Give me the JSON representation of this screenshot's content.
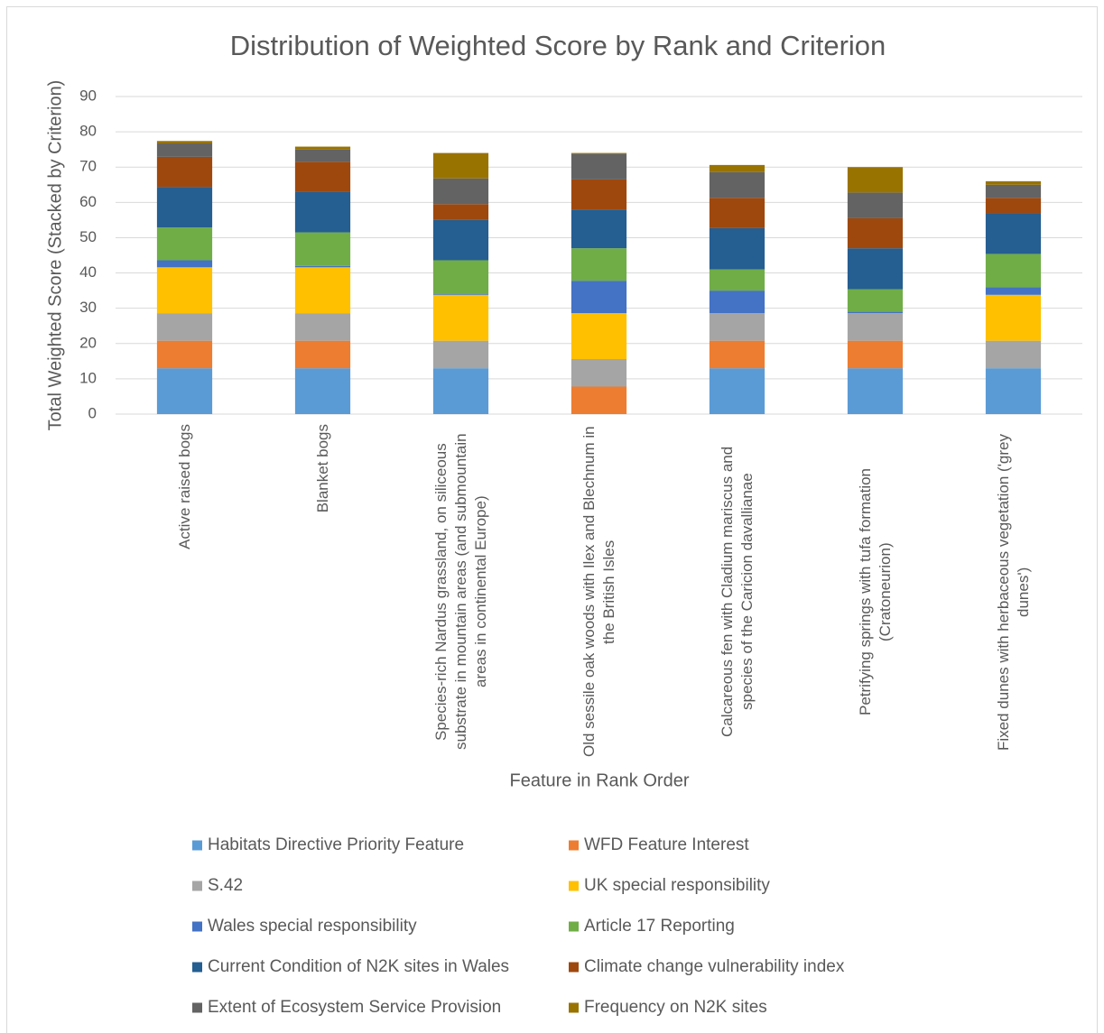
{
  "chart_data": {
    "type": "stacked_bar",
    "title": "Distribution of Weighted Score by Rank and Criterion",
    "x_label": "Feature in Rank Order",
    "y_label": "Total Weighted Score (Stacked by Criterion)",
    "categories": [
      "Active raised bogs",
      "Blanket bogs",
      "Species-rich Nardus grassland, on siliceous substrate in mountain areas (and submountain areas in continental Europe)",
      "Old sessile oak woods with Ilex and Blechnum in the British Isles",
      "Calcareous fen with Cladium mariscus and species of the Caricion davallianae",
      "Petrifying springs with tufa formation (Cratoneurion)",
      "Fixed dunes with herbaceous vegetation ('grey dunes')"
    ],
    "series": [
      {
        "name": "Habitats Directive Priority Feature",
        "color": "#5b9bd5",
        "values": [
          13,
          13,
          13,
          0,
          13,
          13,
          13
        ]
      },
      {
        "name": "WFD Feature Interest",
        "color": "#ed7d31",
        "values": [
          7.8,
          7.8,
          0,
          7.8,
          7.8,
          7.8,
          0
        ]
      },
      {
        "name": "S.42",
        "color": "#a5a5a5",
        "values": [
          7.8,
          7.8,
          7.8,
          7.8,
          7.8,
          7.8,
          7.8
        ]
      },
      {
        "name": "UK special responsibility",
        "color": "#ffc000",
        "values": [
          13,
          13,
          13,
          13,
          0,
          0,
          13
        ]
      },
      {
        "name": "Wales special responsibility",
        "color": "#4472c4",
        "values": [
          2,
          0.4,
          0.2,
          9.2,
          6.4,
          0.4,
          2.2
        ]
      },
      {
        "name": "Article 17 Reporting",
        "color": "#70ad47",
        "values": [
          9.3,
          9.5,
          9.6,
          9.2,
          6,
          6.4,
          9.4
        ]
      },
      {
        "name": "Current Condition of N2K sites in Wales",
        "color": "#255e91",
        "values": [
          11.5,
          11.5,
          11.4,
          11,
          11.7,
          11.6,
          11.6
        ]
      },
      {
        "name": "Climate change vulnerability index",
        "color": "#9e480e",
        "values": [
          8.5,
          8.5,
          4.5,
          8.5,
          8.6,
          8.5,
          4.3
        ]
      },
      {
        "name": "Extent of Ecosystem Service Provision",
        "color": "#636363",
        "values": [
          3.8,
          3.5,
          7.3,
          7.3,
          7.3,
          7.3,
          3.7
        ]
      },
      {
        "name": "Frequency on N2K sites",
        "color": "#997300",
        "values": [
          0.7,
          0.8,
          7.2,
          0.2,
          2,
          7.2,
          1
        ]
      }
    ],
    "ylim": [
      0,
      90
    ],
    "yticks": [
      0,
      10,
      20,
      30,
      40,
      50,
      60,
      70,
      80,
      90
    ],
    "grid": true
  }
}
